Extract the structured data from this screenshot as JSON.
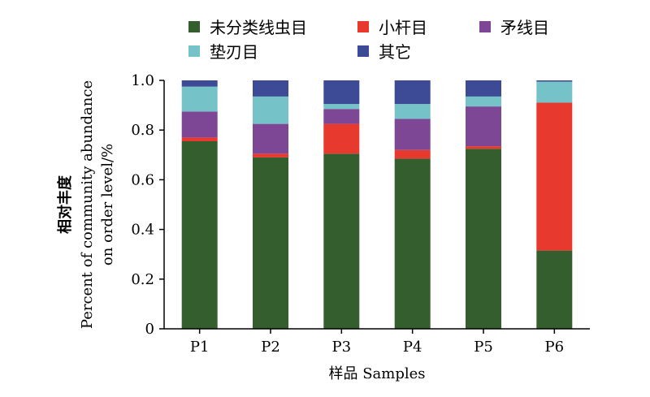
{
  "chart_data": {
    "type": "bar",
    "stacked": true,
    "categories": [
      "P1",
      "P2",
      "P3",
      "P4",
      "P5",
      "P6"
    ],
    "series": [
      {
        "name": "未分类线虫目",
        "color": "#355e2e",
        "values": [
          0.755,
          0.69,
          0.705,
          0.685,
          0.725,
          0.315
        ]
      },
      {
        "name": "小杆目",
        "color": "#e8392f",
        "values": [
          0.015,
          0.015,
          0.12,
          0.035,
          0.01,
          0.595
        ]
      },
      {
        "name": "矛线目",
        "color": "#7e4795",
        "values": [
          0.105,
          0.12,
          0.06,
          0.125,
          0.16,
          0.0
        ]
      },
      {
        "name": "垫刃目",
        "color": "#75c3c8",
        "values": [
          0.1,
          0.11,
          0.02,
          0.06,
          0.04,
          0.085
        ]
      },
      {
        "name": "其它",
        "color": "#3d4b97",
        "values": [
          0.025,
          0.065,
          0.095,
          0.095,
          0.065,
          0.005
        ]
      }
    ],
    "ylim": [
      0,
      1.0
    ],
    "yticks": [
      "0",
      "0.2",
      "0.4",
      "0.6",
      "0.8",
      "1.0"
    ],
    "ytick_values": [
      0,
      0.2,
      0.4,
      0.6,
      0.8,
      1.0
    ],
    "xlabel": "样品 Samples",
    "ylabel_cn": "相对丰度",
    "ylabel_en_line1": "Percent of community abundance",
    "ylabel_en_line2": "on order level/%",
    "legend_position": "top",
    "grid": false
  }
}
